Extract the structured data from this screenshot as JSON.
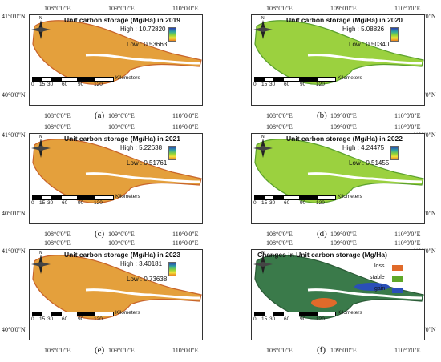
{
  "axes": {
    "top_lon": [
      "108°0'0\"E",
      "109°0'0\"E",
      "110°0'0\"E"
    ],
    "bottom_lon": [
      "108°0'0\"E",
      "109°0'0\"E",
      "110°0'0\"E"
    ],
    "lat_top": "41°0'0\"N",
    "lat_bottom": "40°0'0\"N"
  },
  "scalebar": {
    "ticks": [
      "0",
      "15",
      "30",
      "60",
      "90",
      "120"
    ],
    "unit": "Kilometers"
  },
  "compass": {
    "label": "N"
  },
  "panels": [
    {
      "caption": "(a)",
      "title": "Unit carbon storage (Mg/Ha) in 2019",
      "high": "High : 10.72820",
      "low": "Low : 0.53663",
      "theme": "orange"
    },
    {
      "caption": "(b)",
      "title": "Unit carbon storage (Mg/Ha) in 2020",
      "high": "High : 5.08826",
      "low": "Low : 0.50340",
      "theme": "green"
    },
    {
      "caption": "(c)",
      "title": "Unit carbon storage (Mg/Ha) in 2021",
      "high": "High : 5.22638",
      "low": "Low : 0.51761",
      "theme": "orange"
    },
    {
      "caption": "(d)",
      "title": "Unit carbon storage (Mg/Ha) in 2022",
      "high": "High : 4.24475",
      "low": "Low : 0.51455",
      "theme": "green"
    },
    {
      "caption": "(e)",
      "title": "Unit carbon storage (Mg/Ha) in 2023",
      "high": "High : 3.40181",
      "low": "Low : 0.73638",
      "theme": "orange"
    },
    {
      "caption": "(f)",
      "title": "Changes in Unit carbon storage (Mg/Ha)",
      "theme": "change",
      "legend": [
        {
          "label": "loss",
          "color": "#e06a2a"
        },
        {
          "label": "stable",
          "color": "#5fa829"
        },
        {
          "label": "gain",
          "color": "#2a4fb8"
        }
      ]
    }
  ],
  "colors": {
    "orange_fill": "#e4a03c",
    "orange_edge": "#c8642a",
    "green_fill": "#9bd13f",
    "green_edge": "#5aa02c",
    "change_fill": "#3a7a4a"
  }
}
